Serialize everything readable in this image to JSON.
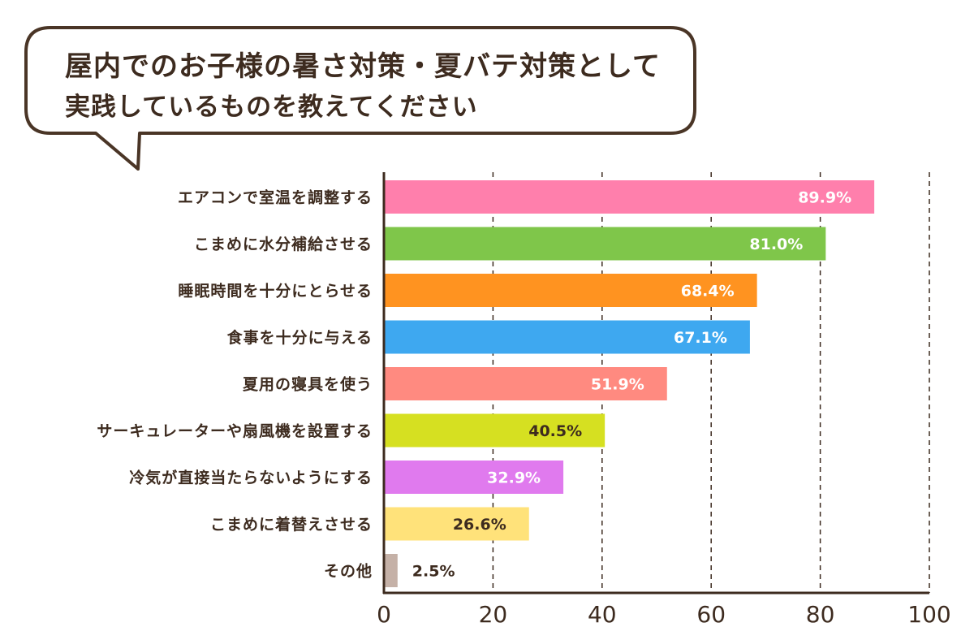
{
  "title": {
    "line1": "屋内でのお子様の暑さ対策・夏バテ対策として",
    "line2": "実践しているものを教えてください"
  },
  "chart_data": {
    "type": "bar",
    "orientation": "horizontal",
    "title": "屋内でのお子様の暑さ対策・夏バテ対策として実践しているものを教えてください",
    "xlabel": "",
    "ylabel": "",
    "xlim": [
      0,
      100
    ],
    "ticks": [
      0,
      20,
      40,
      60,
      80,
      100
    ],
    "grid": "vertical dashed",
    "legend": "none",
    "categories": [
      "エアコンで室温を調整する",
      "こまめに水分補給させる",
      "睡眠時間を十分にとらせる",
      "食事を十分に与える",
      "夏用の寝具を使う",
      "サーキュレーターや扇風機を設置する",
      "冷気が直接当たらないようにする",
      "こまめに着替えさせる",
      "その他"
    ],
    "values": [
      89.9,
      81.0,
      68.4,
      67.1,
      51.9,
      40.5,
      32.9,
      26.6,
      2.5
    ],
    "value_labels": [
      "89.9%",
      "81.0%",
      "68.4%",
      "67.1%",
      "51.9%",
      "40.5%",
      "32.9%",
      "26.6%",
      "2.5%"
    ],
    "colors": [
      "#ff7fac",
      "#7fc64a",
      "#ff9320",
      "#3ea8f0",
      "#ff8a80",
      "#d6e021",
      "#e07aee",
      "#ffe27a",
      "#c5b1a7"
    ],
    "label_colors": [
      "#ffffff",
      "#ffffff",
      "#ffffff",
      "#ffffff",
      "#ffffff",
      "#3d2b1f",
      "#ffffff",
      "#3d2b1f",
      "#3d2b1f"
    ]
  }
}
